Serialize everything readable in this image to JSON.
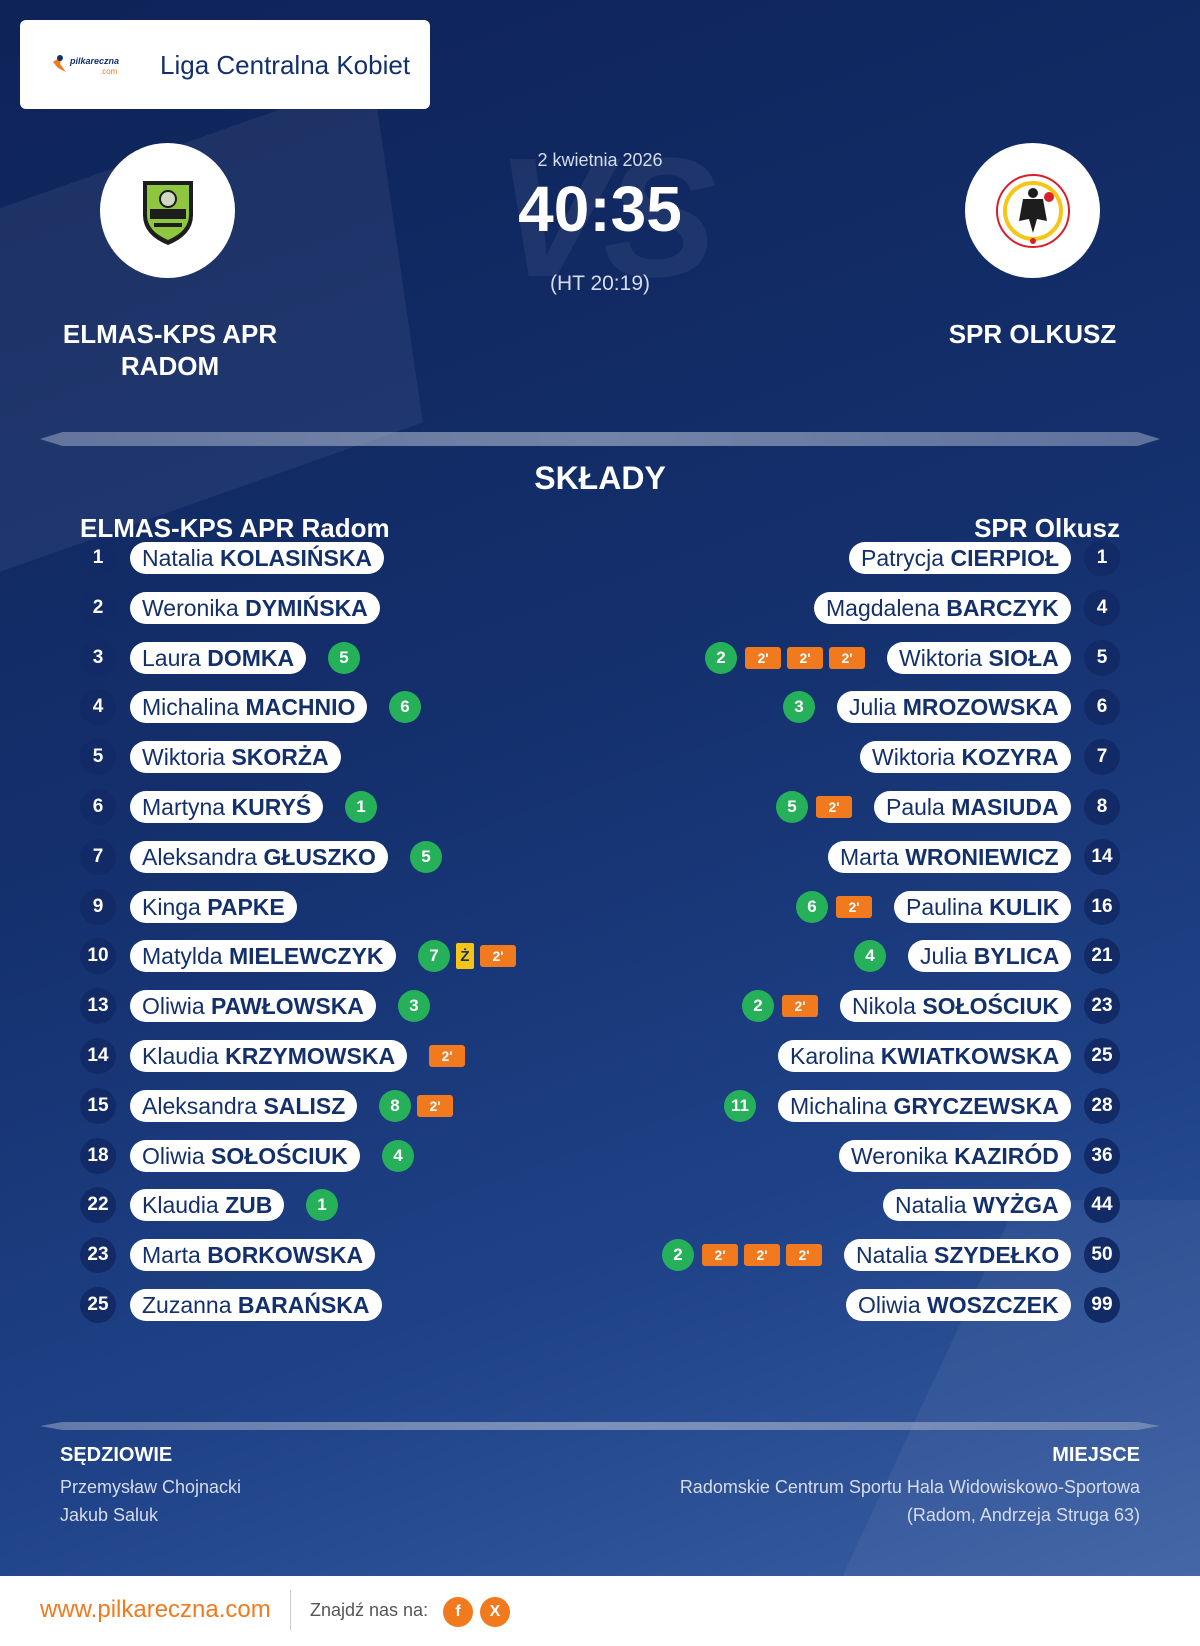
{
  "header": {
    "league": "Liga Centralna Kobiet",
    "logo_text_top": "pilkareczna",
    "logo_text_bottom": ".com",
    "date": "2 kwietnia 2026",
    "score": "40:35",
    "halftime": "(HT 20:19)",
    "vs_watermark": "VS",
    "home_team": "ELMAS-KPS APR RADOM",
    "away_team": "SPR OLKUSZ"
  },
  "lineups": {
    "title": "SKŁADY",
    "home_title": "ELMAS-KPS APR Radom",
    "away_title": "SPR Olkusz",
    "home": [
      {
        "number": "1",
        "first": "Natalia",
        "last": "KOLASIŃSKA",
        "goals": "",
        "yellow": false,
        "suspensions": 0
      },
      {
        "number": "2",
        "first": "Weronika",
        "last": "DYMIŃSKA",
        "goals": "",
        "yellow": false,
        "suspensions": 0
      },
      {
        "number": "3",
        "first": "Laura",
        "last": "DOMKA",
        "goals": "5",
        "yellow": false,
        "suspensions": 0
      },
      {
        "number": "4",
        "first": "Michalina",
        "last": "MACHNIO",
        "goals": "6",
        "yellow": false,
        "suspensions": 0
      },
      {
        "number": "5",
        "first": "Wiktoria",
        "last": "SKORŻA",
        "goals": "",
        "yellow": false,
        "suspensions": 0
      },
      {
        "number": "6",
        "first": "Martyna",
        "last": "KURYŚ",
        "goals": "1",
        "yellow": false,
        "suspensions": 0
      },
      {
        "number": "7",
        "first": "Aleksandra",
        "last": "GŁUSZKO",
        "goals": "5",
        "yellow": false,
        "suspensions": 0
      },
      {
        "number": "9",
        "first": "Kinga",
        "last": "PAPKE",
        "goals": "",
        "yellow": false,
        "suspensions": 0
      },
      {
        "number": "10",
        "first": "Matylda",
        "last": "MIELEWCZYK",
        "goals": "7",
        "yellow": true,
        "suspensions": 1
      },
      {
        "number": "13",
        "first": "Oliwia",
        "last": "PAWŁOWSKA",
        "goals": "3",
        "yellow": false,
        "suspensions": 0
      },
      {
        "number": "14",
        "first": "Klaudia",
        "last": "KRZYMOWSKA",
        "goals": "",
        "yellow": false,
        "suspensions": 1
      },
      {
        "number": "15",
        "first": "Aleksandra",
        "last": "SALISZ",
        "goals": "8",
        "yellow": false,
        "suspensions": 1
      },
      {
        "number": "18",
        "first": "Oliwia",
        "last": "SOŁOŚCIUK",
        "goals": "4",
        "yellow": false,
        "suspensions": 0
      },
      {
        "number": "22",
        "first": "Klaudia",
        "last": "ZUB",
        "goals": "1",
        "yellow": false,
        "suspensions": 0
      },
      {
        "number": "23",
        "first": "Marta",
        "last": "BORKOWSKA",
        "goals": "",
        "yellow": false,
        "suspensions": 0
      },
      {
        "number": "25",
        "first": "Zuzanna",
        "last": "BARAŃSKA",
        "goals": "",
        "yellow": false,
        "suspensions": 0
      }
    ],
    "away": [
      {
        "number": "1",
        "first": "Patrycja",
        "last": "CIERPIOŁ",
        "goals": "",
        "yellow": false,
        "suspensions": 0
      },
      {
        "number": "4",
        "first": "Magdalena",
        "last": "BARCZYK",
        "goals": "",
        "yellow": false,
        "suspensions": 0
      },
      {
        "number": "5",
        "first": "Wiktoria",
        "last": "SIOŁA",
        "goals": "2",
        "yellow": false,
        "suspensions": 3
      },
      {
        "number": "6",
        "first": "Julia",
        "last": "MROZOWSKA",
        "goals": "3",
        "yellow": false,
        "suspensions": 0
      },
      {
        "number": "7",
        "first": "Wiktoria",
        "last": "KOZYRA",
        "goals": "",
        "yellow": false,
        "suspensions": 0
      },
      {
        "number": "8",
        "first": "Paula",
        "last": "MASIUDA",
        "goals": "5",
        "yellow": false,
        "suspensions": 1
      },
      {
        "number": "14",
        "first": "Marta",
        "last": "WRONIEWICZ",
        "goals": "",
        "yellow": false,
        "suspensions": 0
      },
      {
        "number": "16",
        "first": "Paulina",
        "last": "KULIK",
        "goals": "6",
        "yellow": false,
        "suspensions": 1
      },
      {
        "number": "21",
        "first": "Julia",
        "last": "BYLICA",
        "goals": "4",
        "yellow": false,
        "suspensions": 0
      },
      {
        "number": "23",
        "first": "Nikola",
        "last": "SOŁOŚCIUK",
        "goals": "2",
        "yellow": false,
        "suspensions": 1
      },
      {
        "number": "25",
        "first": "Karolina",
        "last": "KWIATKOWSKA",
        "goals": "",
        "yellow": false,
        "suspensions": 0
      },
      {
        "number": "28",
        "first": "Michalina",
        "last": "GRYCZEWSKA",
        "goals": "11",
        "yellow": false,
        "suspensions": 0
      },
      {
        "number": "36",
        "first": "Weronika",
        "last": "KAZIRÓD",
        "goals": "",
        "yellow": false,
        "suspensions": 0
      },
      {
        "number": "44",
        "first": "Natalia",
        "last": "WYŻGA",
        "goals": "",
        "yellow": false,
        "suspensions": 0
      },
      {
        "number": "50",
        "first": "Natalia",
        "last": "SZYDEŁKO",
        "goals": "2",
        "yellow": false,
        "suspensions": 3
      },
      {
        "number": "99",
        "first": "Oliwia",
        "last": "WOSZCZEK",
        "goals": "",
        "yellow": false,
        "suspensions": 0
      }
    ],
    "suspension_label": "2'",
    "yellow_label": "Ż"
  },
  "info": {
    "referees_label": "SĘDZIOWIE",
    "referee1": "Przemysław Chojnacki",
    "referee2": "Jakub Saluk",
    "venue_label": "MIEJSCE",
    "venue_line1": "Radomskie Centrum Sportu Hala Widowiskowo-Sportowa",
    "venue_line2": "(Radom, Andrzeja Struga 63)"
  },
  "footer": {
    "url": "www.pilkareczna.com",
    "find_us": "Znajdź nas na:",
    "facebook": "f",
    "x": "X"
  },
  "colors": {
    "navy": "#13306c",
    "goal_green": "#27b05a",
    "suspension_orange": "#f1791e",
    "yellow_card": "#f7c515"
  }
}
